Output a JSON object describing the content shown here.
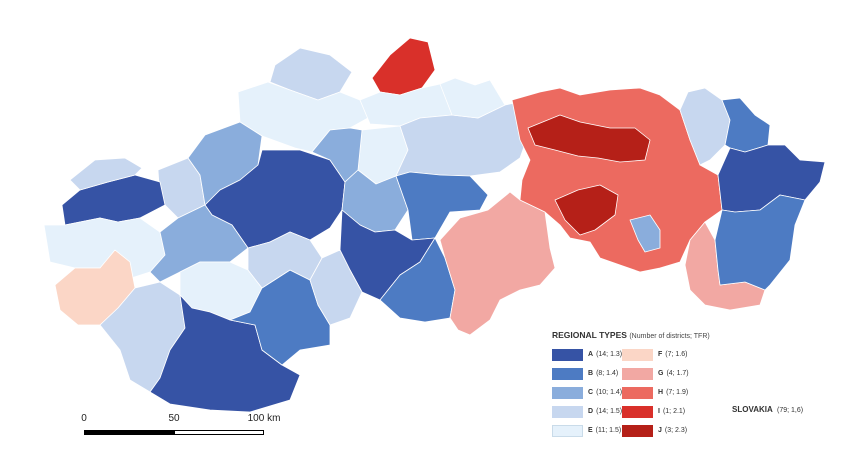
{
  "legend": {
    "title": "REGIONAL TYPES",
    "subtitle": "(Number of districts; TFR)",
    "items": [
      {
        "code": "A",
        "value": "(14; 1.3)",
        "color": "#3653a5"
      },
      {
        "code": "B",
        "value": "(8; 1.4)",
        "color": "#4d7bc3"
      },
      {
        "code": "C",
        "value": "(10; 1.4)",
        "color": "#8aaddc"
      },
      {
        "code": "D",
        "value": "(14; 1.5)",
        "color": "#c7d7ef"
      },
      {
        "code": "E",
        "value": "(11; 1.5)",
        "color": "#e5f1fb"
      },
      {
        "code": "F",
        "value": "(7; 1.6)",
        "color": "#fbd6c6"
      },
      {
        "code": "G",
        "value": "(4; 1.7)",
        "color": "#f2a8a3"
      },
      {
        "code": "H",
        "value": "(7; 1.9)",
        "color": "#ec6a60"
      },
      {
        "code": "I",
        "value": "(1; 2.1)",
        "color": "#d9302a"
      },
      {
        "code": "J",
        "value": "(3; 2.3)",
        "color": "#b52018"
      }
    ]
  },
  "country": {
    "name": "SLOVAKIA",
    "value": "(79; 1,6)"
  },
  "scale": {
    "ticks": [
      "0",
      "50",
      "100 km"
    ]
  }
}
